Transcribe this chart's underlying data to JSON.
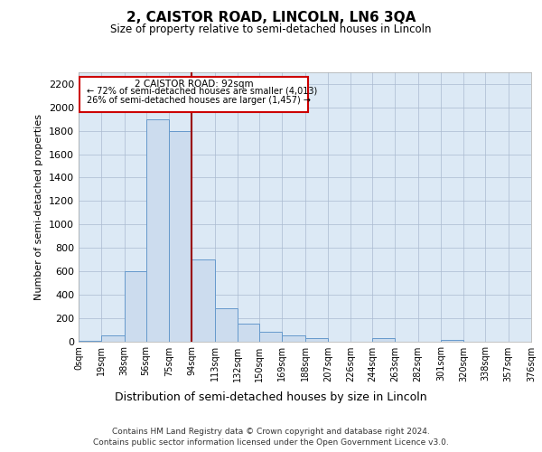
{
  "title": "2, CAISTOR ROAD, LINCOLN, LN6 3QA",
  "subtitle": "Size of property relative to semi-detached houses in Lincoln",
  "xlabel": "Distribution of semi-detached houses by size in Lincoln",
  "ylabel": "Number of semi-detached properties",
  "footnote1": "Contains HM Land Registry data © Crown copyright and database right 2024.",
  "footnote2": "Contains public sector information licensed under the Open Government Licence v3.0.",
  "annotation_title": "2 CAISTOR ROAD: 92sqm",
  "annotation_line1": "← 72% of semi-detached houses are smaller (4,013)",
  "annotation_line2": "26% of semi-detached houses are larger (1,457) →",
  "bin_edges": [
    0,
    19,
    38,
    56,
    75,
    94,
    113,
    132,
    150,
    169,
    188,
    207,
    226,
    244,
    263,
    282,
    301,
    320,
    338,
    357,
    376
  ],
  "bin_heights": [
    5,
    50,
    600,
    1900,
    1800,
    700,
    280,
    150,
    80,
    50,
    30,
    0,
    0,
    30,
    0,
    0,
    10,
    0,
    0,
    0
  ],
  "bar_color": "#ccdcee",
  "bar_edge_color": "#6699cc",
  "vline_color": "#990000",
  "vline_x": 94,
  "annotation_box_color": "#ffffff",
  "annotation_box_edge": "#cc0000",
  "grid_color": "#aabbd0",
  "background_color": "#dce9f5",
  "ylim": [
    0,
    2300
  ],
  "yticks": [
    0,
    200,
    400,
    600,
    800,
    1000,
    1200,
    1400,
    1600,
    1800,
    2000,
    2200
  ]
}
